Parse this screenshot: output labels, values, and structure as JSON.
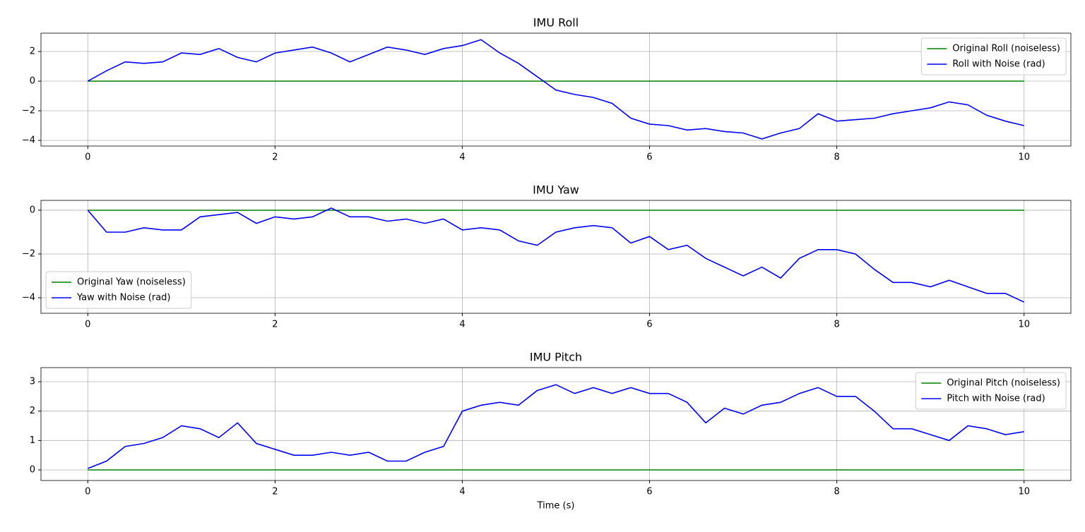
{
  "chart_data": [
    {
      "type": "line",
      "title": "IMU Roll",
      "x": [
        0,
        0.2,
        0.4,
        0.6,
        0.8,
        1,
        1.2,
        1.4,
        1.6,
        1.8,
        2,
        2.2,
        2.4,
        2.6,
        2.8,
        3,
        3.2,
        3.4,
        3.6,
        3.8,
        4,
        4.2,
        4.4,
        4.6,
        4.8,
        5,
        5.2,
        5.4,
        5.6,
        5.8,
        6,
        6.2,
        6.4,
        6.6,
        6.8,
        7,
        7.2,
        7.4,
        7.6,
        7.8,
        8,
        8.2,
        8.4,
        8.6,
        8.8,
        9,
        9.2,
        9.4,
        9.6,
        9.8,
        10
      ],
      "series": [
        {
          "name": "Original Roll (noiseless)",
          "color": "#008000",
          "values": [
            0,
            0,
            0,
            0,
            0,
            0,
            0,
            0,
            0,
            0,
            0,
            0,
            0,
            0,
            0,
            0,
            0,
            0,
            0,
            0,
            0,
            0,
            0,
            0,
            0,
            0,
            0,
            0,
            0,
            0,
            0,
            0,
            0,
            0,
            0,
            0,
            0,
            0,
            0,
            0,
            0,
            0,
            0,
            0,
            0,
            0,
            0,
            0,
            0,
            0,
            0
          ]
        },
        {
          "name": "Roll with Noise (rad)",
          "color": "#0000ff",
          "values": [
            0,
            0.7,
            1.3,
            1.2,
            1.3,
            1.9,
            1.8,
            2.2,
            1.6,
            1.3,
            1.9,
            2.1,
            2.3,
            1.9,
            1.3,
            1.8,
            2.3,
            2.1,
            1.8,
            2.2,
            2.4,
            2.8,
            1.9,
            1.2,
            0.3,
            -0.6,
            -0.9,
            -1.1,
            -1.5,
            -2.5,
            -2.9,
            -3.0,
            -3.3,
            -3.2,
            -3.4,
            -3.5,
            -3.9,
            -3.5,
            -3.2,
            -2.2,
            -2.7,
            -2.6,
            -2.5,
            -2.2,
            -2.0,
            -1.8,
            -1.4,
            -1.6,
            -2.3,
            -2.7,
            -3.0
          ]
        }
      ],
      "xlim": [
        -0.5,
        10.5
      ],
      "xticks": [
        0,
        2,
        4,
        6,
        8,
        10
      ],
      "ylim": [
        -4.38,
        3.24
      ],
      "yticks": [
        {
          "value": -4,
          "label": "−4"
        },
        {
          "value": -2,
          "label": "−2"
        },
        0,
        2
      ],
      "grid": true,
      "legend": "upper right"
    },
    {
      "type": "line",
      "title": "IMU Yaw",
      "x": [
        0,
        0.2,
        0.4,
        0.6,
        0.8,
        1,
        1.2,
        1.4,
        1.6,
        1.8,
        2,
        2.2,
        2.4,
        2.6,
        2.8,
        3,
        3.2,
        3.4,
        3.6,
        3.8,
        4,
        4.2,
        4.4,
        4.6,
        4.8,
        5,
        5.2,
        5.4,
        5.6,
        5.8,
        6,
        6.2,
        6.4,
        6.6,
        6.8,
        7,
        7.2,
        7.4,
        7.6,
        7.8,
        8,
        8.2,
        8.4,
        8.6,
        8.8,
        9,
        9.2,
        9.4,
        9.6,
        9.8,
        10
      ],
      "series": [
        {
          "name": "Original Yaw (noiseless)",
          "color": "#008000",
          "values": [
            0,
            0,
            0,
            0,
            0,
            0,
            0,
            0,
            0,
            0,
            0,
            0,
            0,
            0,
            0,
            0,
            0,
            0,
            0,
            0,
            0,
            0,
            0,
            0,
            0,
            0,
            0,
            0,
            0,
            0,
            0,
            0,
            0,
            0,
            0,
            0,
            0,
            0,
            0,
            0,
            0,
            0,
            0,
            0,
            0,
            0,
            0,
            0,
            0,
            0,
            0
          ]
        },
        {
          "name": "Yaw with Noise (rad)",
          "color": "#0000ff",
          "values": [
            0,
            -1.0,
            -1.0,
            -0.8,
            -0.9,
            -0.9,
            -0.3,
            -0.2,
            -0.1,
            -0.6,
            -0.3,
            -0.4,
            -0.3,
            0.1,
            -0.3,
            -0.3,
            -0.5,
            -0.4,
            -0.6,
            -0.4,
            -0.9,
            -0.8,
            -0.9,
            -1.4,
            -1.6,
            -1.0,
            -0.8,
            -0.7,
            -0.8,
            -1.5,
            -1.2,
            -1.8,
            -1.6,
            -2.2,
            -2.6,
            -3.0,
            -2.6,
            -3.1,
            -2.2,
            -1.8,
            -1.8,
            -2.0,
            -2.7,
            -3.3,
            -3.3,
            -3.5,
            -3.2,
            -3.5,
            -3.8,
            -3.8,
            -4.2
          ]
        }
      ],
      "xlim": [
        -0.5,
        10.5
      ],
      "xticks": [
        0,
        2,
        4,
        6,
        8,
        10
      ],
      "ylim": [
        -4.71,
        0.45
      ],
      "yticks": [
        {
          "value": -4,
          "label": "−4"
        },
        {
          "value": -2,
          "label": "−2"
        },
        0
      ],
      "grid": true,
      "legend": "lower left"
    },
    {
      "type": "line",
      "title": "IMU Pitch",
      "xlabel": "Time (s)",
      "x": [
        0,
        0.2,
        0.4,
        0.6,
        0.8,
        1,
        1.2,
        1.4,
        1.6,
        1.8,
        2,
        2.2,
        2.4,
        2.6,
        2.8,
        3,
        3.2,
        3.4,
        3.6,
        3.8,
        4,
        4.2,
        4.4,
        4.6,
        4.8,
        5,
        5.2,
        5.4,
        5.6,
        5.8,
        6,
        6.2,
        6.4,
        6.6,
        6.8,
        7,
        7.2,
        7.4,
        7.6,
        7.8,
        8,
        8.2,
        8.4,
        8.6,
        8.8,
        9,
        9.2,
        9.4,
        9.6,
        9.8,
        10
      ],
      "series": [
        {
          "name": "Original Pitch (noiseless)",
          "color": "#008000",
          "values": [
            0,
            0,
            0,
            0,
            0,
            0,
            0,
            0,
            0,
            0,
            0,
            0,
            0,
            0,
            0,
            0,
            0,
            0,
            0,
            0,
            0,
            0,
            0,
            0,
            0,
            0,
            0,
            0,
            0,
            0,
            0,
            0,
            0,
            0,
            0,
            0,
            0,
            0,
            0,
            0,
            0,
            0,
            0,
            0,
            0,
            0,
            0,
            0,
            0,
            0,
            0
          ]
        },
        {
          "name": "Pitch with Noise (rad)",
          "color": "#0000ff",
          "values": [
            0.05,
            0.3,
            0.8,
            0.9,
            1.1,
            1.5,
            1.4,
            1.1,
            1.6,
            0.9,
            0.7,
            0.5,
            0.5,
            0.6,
            0.5,
            0.6,
            0.3,
            0.3,
            0.6,
            0.8,
            2.0,
            2.2,
            2.3,
            2.2,
            2.7,
            2.9,
            2.6,
            2.8,
            2.6,
            2.8,
            2.6,
            2.6,
            2.3,
            1.6,
            2.1,
            1.9,
            2.2,
            2.3,
            2.6,
            2.8,
            2.5,
            2.5,
            2.0,
            1.4,
            1.4,
            1.2,
            1.0,
            1.5,
            1.4,
            1.2,
            1.3
          ]
        }
      ],
      "xlim": [
        -0.5,
        10.5
      ],
      "xticks": [
        0,
        2,
        4,
        6,
        8,
        10
      ],
      "ylim": [
        -0.36,
        3.48
      ],
      "yticks": [
        0,
        1,
        2,
        3
      ],
      "grid": true,
      "legend": "upper right"
    }
  ]
}
